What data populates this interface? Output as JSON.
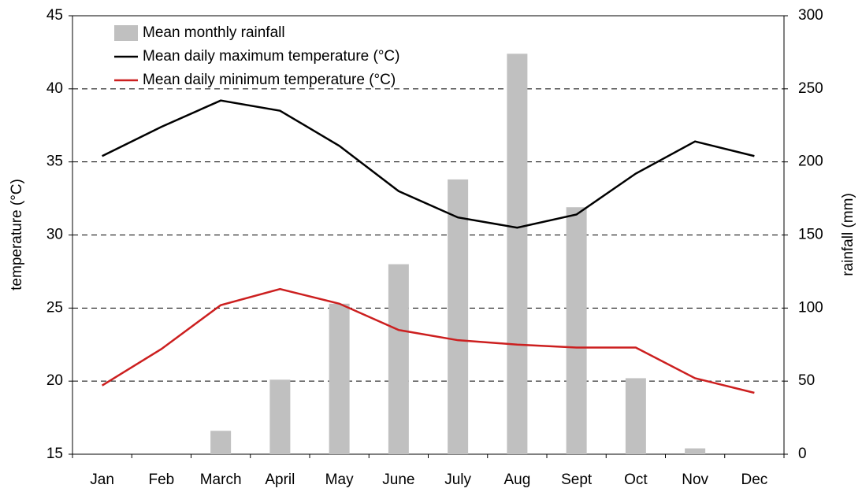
{
  "chart_data": {
    "type": "bar_line",
    "categories": [
      "Jan",
      "Feb",
      "March",
      "April",
      "May",
      "June",
      "July",
      "Aug",
      "Sept",
      "Oct",
      "Nov",
      "Dec"
    ],
    "series": [
      {
        "name": "Mean monthly rainfall",
        "type": "bar",
        "axis": "y2",
        "color": "#c0c0c0",
        "values": [
          0,
          0,
          16,
          51,
          103,
          130,
          188,
          274,
          169,
          52,
          4,
          0
        ]
      },
      {
        "name": "Mean daily maximum temperature (°C)",
        "type": "line",
        "color": "#000000",
        "values": [
          35.4,
          37.4,
          39.2,
          38.5,
          36.1,
          33.0,
          31.2,
          30.5,
          31.4,
          34.2,
          36.4,
          35.4
        ]
      },
      {
        "name": "Mean daily minimum temperature (°C)",
        "type": "line",
        "color": "#cc1f1f",
        "values": [
          19.7,
          22.2,
          25.2,
          26.3,
          25.3,
          23.5,
          22.8,
          22.5,
          22.3,
          22.3,
          20.2,
          19.2
        ]
      }
    ],
    "y_label": "temperature (°C)",
    "y2_label": "rainfall (mm)",
    "ylim": [
      15,
      45
    ],
    "yticks": [
      15,
      20,
      25,
      30,
      35,
      40,
      45
    ],
    "y2lim": [
      0,
      300
    ],
    "y2ticks": [
      0,
      50,
      100,
      150,
      200,
      250,
      300
    ],
    "grid": true,
    "legend": "upper left"
  }
}
